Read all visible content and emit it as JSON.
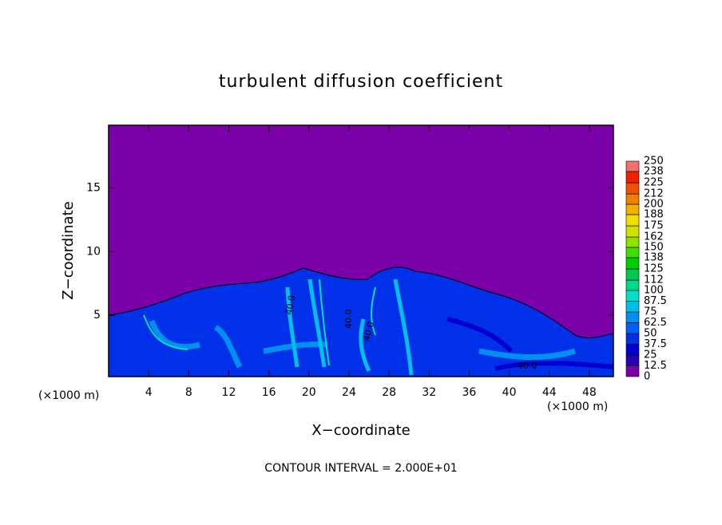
{
  "chart_data": {
    "type": "contour",
    "title": "turbulent diffusion coefficient",
    "x_label": "X−coordinate",
    "y_label": "Z−coordinate",
    "x_unit": "(×1000 m)",
    "y_unit": "(×1000 m)",
    "footnote": "CONTOUR INTERVAL = 2.000E+01",
    "xlim": [
      0,
      50.4
    ],
    "xticks": [
      4,
      8,
      12,
      16,
      20,
      24,
      28,
      32,
      36,
      40,
      44,
      48
    ],
    "ylim": [
      0.2,
      19.9
    ],
    "yticks": [
      5,
      10,
      15
    ],
    "contour_labels": [
      "40.0",
      "40.0",
      "40.0",
      "40.0"
    ],
    "colorbar": {
      "levels": [
        0,
        12.5,
        25,
        37.5,
        50,
        62.5,
        75,
        87.5,
        100,
        112,
        125,
        138,
        150,
        162,
        175,
        188,
        200,
        212,
        225,
        238,
        250
      ],
      "colors": [
        "#7a00a8",
        "#2a00b0",
        "#0000d0",
        "#0030e8",
        "#0060f4",
        "#0090f0",
        "#00c0e8",
        "#00e0c8",
        "#00d890",
        "#00c850",
        "#00d000",
        "#40e000",
        "#90e000",
        "#d0e000",
        "#f0e000",
        "#f0b000",
        "#f08000",
        "#f05000",
        "#f02000",
        "#f07070"
      ]
    }
  }
}
